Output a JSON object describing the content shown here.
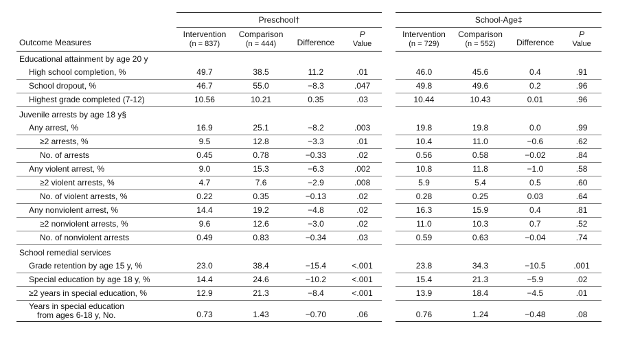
{
  "type": "table",
  "background_color": "#ffffff",
  "text_color": "#111111",
  "rule_color": "#000000",
  "row_rule_color": "#777777",
  "font_family": "Arial",
  "body_fontsize_pt": 9,
  "header_fontsize_pt": 9,
  "columns": {
    "outcome_measures": "Outcome Measures",
    "groups": [
      {
        "title": "Preschool†",
        "intervention_head": "Intervention",
        "intervention_n": "(n = 837)",
        "comparison_head": "Comparison",
        "comparison_n": "(n = 444)",
        "difference_head": "Difference",
        "p_head_italic": "P",
        "p_head_sub": "Value"
      },
      {
        "title": "School-Age‡",
        "intervention_head": "Intervention",
        "intervention_n": "(n = 729)",
        "comparison_head": "Comparison",
        "comparison_n": "(n = 552)",
        "difference_head": "Difference",
        "p_head_italic": "P",
        "p_head_sub": "Value"
      }
    ]
  },
  "sections": [
    {
      "title": "Educational attainment by age 20 y",
      "rows": [
        {
          "label": "High school completion, %",
          "indent": 1,
          "p": [
            "49.7",
            "38.5",
            "11.2",
            ".01"
          ],
          "s": [
            "46.0",
            "45.6",
            "0.4",
            ".91"
          ]
        },
        {
          "label": "School dropout, %",
          "indent": 1,
          "p": [
            "46.7",
            "55.0",
            "−8.3",
            ".047"
          ],
          "s": [
            "49.8",
            "49.6",
            "0.2",
            ".96"
          ]
        },
        {
          "label": "Highest grade completed (7-12)",
          "indent": 1,
          "p": [
            "10.56",
            "10.21",
            "0.35",
            ".03"
          ],
          "s": [
            "10.44",
            "10.43",
            "0.01",
            ".96"
          ]
        }
      ]
    },
    {
      "title": "Juvenile arrests by age 18 y§",
      "rows": [
        {
          "label": "Any arrest, %",
          "indent": 1,
          "p": [
            "16.9",
            "25.1",
            "−8.2",
            ".003"
          ],
          "s": [
            "19.8",
            "19.8",
            "0.0",
            ".99"
          ]
        },
        {
          "label": "≥2 arrests, %",
          "indent": 2,
          "p": [
            "9.5",
            "12.8",
            "−3.3",
            ".01"
          ],
          "s": [
            "10.4",
            "11.0",
            "−0.6",
            ".62"
          ]
        },
        {
          "label": "No. of arrests",
          "indent": 2,
          "p": [
            "0.45",
            "0.78",
            "−0.33",
            ".02"
          ],
          "s": [
            "0.56",
            "0.58",
            "−0.02",
            ".84"
          ]
        },
        {
          "label": "Any violent arrest, %",
          "indent": 1,
          "p": [
            "9.0",
            "15.3",
            "−6.3",
            ".002"
          ],
          "s": [
            "10.8",
            "11.8",
            "−1.0",
            ".58"
          ]
        },
        {
          "label": "≥2 violent arrests, %",
          "indent": 2,
          "p": [
            "4.7",
            "7.6",
            "−2.9",
            ".008"
          ],
          "s": [
            "5.9",
            "5.4",
            "0.5",
            ".60"
          ]
        },
        {
          "label": "No. of violent arrests, %",
          "indent": 2,
          "p": [
            "0.22",
            "0.35",
            "−0.13",
            ".02"
          ],
          "s": [
            "0.28",
            "0.25",
            "0.03",
            ".64"
          ]
        },
        {
          "label": "Any nonviolent arrest, %",
          "indent": 1,
          "p": [
            "14.4",
            "19.2",
            "−4.8",
            ".02"
          ],
          "s": [
            "16.3",
            "15.9",
            "0.4",
            ".81"
          ]
        },
        {
          "label": "≥2 nonviolent arrests, %",
          "indent": 2,
          "p": [
            "9.6",
            "12.6",
            "−3.0",
            ".02"
          ],
          "s": [
            "11.0",
            "10.3",
            "0.7",
            ".52"
          ]
        },
        {
          "label": "No. of nonviolent arrests",
          "indent": 2,
          "p": [
            "0.49",
            "0.83",
            "−0.34",
            ".03"
          ],
          "s": [
            "0.59",
            "0.63",
            "−0.04",
            ".74"
          ]
        }
      ]
    },
    {
      "title": "School remedial services",
      "rows": [
        {
          "label": "Grade retention by age 15 y, %",
          "indent": 1,
          "p": [
            "23.0",
            "38.4",
            "−15.4",
            "<.001"
          ],
          "s": [
            "23.8",
            "34.3",
            "−10.5",
            ".001"
          ]
        },
        {
          "label": "Special education by age 18 y, %",
          "indent": 1,
          "p": [
            "14.4",
            "24.6",
            "−10.2",
            "<.001"
          ],
          "s": [
            "15.4",
            "21.3",
            "−5.9",
            ".02"
          ]
        },
        {
          "label": "≥2 years in special education, %",
          "indent": 1,
          "p": [
            "12.9",
            "21.3",
            "−8.4",
            "<.001"
          ],
          "s": [
            "13.9",
            "18.4",
            "−4.5",
            ".01"
          ]
        },
        {
          "label": "Years in special education from ages 6-18 y, No.",
          "label2": "from ages 6-18 y, No.",
          "label1": "Years in special education",
          "indent": 1,
          "p": [
            "0.73",
            "1.43",
            "−0.70",
            ".06"
          ],
          "s": [
            "0.76",
            "1.24",
            "−0.48",
            ".08"
          ]
        }
      ]
    }
  ]
}
